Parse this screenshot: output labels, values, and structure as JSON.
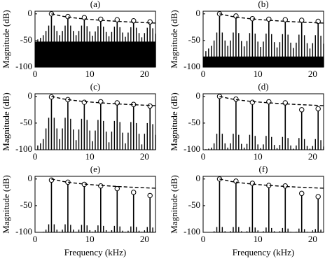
{
  "chart_data": [
    {
      "type": "stem",
      "title": "(a)",
      "y_label": "Magnitude (dB)",
      "xlim": [
        0,
        22
      ],
      "ylim": [
        -100,
        5
      ],
      "xticks": [
        0,
        10,
        20
      ],
      "yticks": [
        0,
        -50,
        -100
      ],
      "noise_floor": -52,
      "harmonics": {
        "x": [
          3,
          6,
          9,
          12,
          15,
          18,
          21
        ],
        "values": [
          0,
          -5,
          -7,
          -10,
          -11,
          -13,
          -15
        ]
      },
      "envelope": {
        "x": [
          3,
          5,
          7,
          9,
          11,
          13,
          15,
          17,
          19,
          21,
          22
        ],
        "values": [
          0,
          -4.4,
          -7.4,
          -9.5,
          -11.3,
          -12.7,
          -14,
          -15.1,
          -16,
          -16.9,
          -17.3
        ]
      },
      "sidebands": {
        "x": [
          0.5,
          1,
          1.5,
          2,
          2.5,
          3.5,
          4,
          4.5,
          5,
          5.5,
          6.5,
          7,
          7.5,
          8,
          8.5,
          9.5,
          10,
          10.5,
          11,
          11.5,
          12.5,
          13,
          13.5,
          14,
          14.5,
          15.5,
          16,
          16.5,
          17,
          17.5,
          18.5,
          19,
          19.5,
          20,
          20.5,
          21.5,
          22
        ],
        "values": [
          -48,
          -45,
          -40,
          -32,
          -22,
          -22,
          -32,
          -40,
          -32,
          -22,
          -22,
          -32,
          -40,
          -32,
          -22,
          -23,
          -33,
          -41,
          -33,
          -23,
          -24,
          -34,
          -42,
          -34,
          -24,
          -25,
          -35,
          -43,
          -35,
          -25,
          -26,
          -36,
          -44,
          -36,
          -26,
          -27,
          -37
        ]
      }
    },
    {
      "type": "stem",
      "title": "(b)",
      "y_label": "Magnitude (dB)",
      "xlim": [
        0,
        22
      ],
      "ylim": [
        -100,
        5
      ],
      "xticks": [
        0,
        10,
        20
      ],
      "yticks": [
        0,
        -50,
        -100
      ],
      "noise_floor": -80,
      "harmonics": {
        "x": [
          3,
          6,
          9,
          12,
          15,
          18,
          21
        ],
        "values": [
          0,
          -4,
          -9,
          -10,
          -11,
          -12,
          -14
        ]
      },
      "envelope": {
        "x": [
          3,
          5,
          7,
          9,
          11,
          13,
          15,
          17,
          19,
          21,
          22
        ],
        "values": [
          0,
          -4.4,
          -7.4,
          -9.5,
          -11.3,
          -12.7,
          -14,
          -15.1,
          -16,
          -16.9,
          -17.3
        ]
      },
      "sidebands": {
        "x": [
          0.5,
          1,
          1.5,
          2,
          2.5,
          3.5,
          4,
          4.5,
          5,
          5.5,
          6.5,
          7,
          7.5,
          8,
          8.5,
          9.5,
          10,
          10.5,
          11,
          11.5,
          12.5,
          13,
          13.5,
          14,
          14.5,
          15.5,
          16,
          16.5,
          17,
          17.5,
          18.5,
          19,
          19.5,
          20,
          20.5,
          21.5,
          22
        ],
        "values": [
          -70,
          -65,
          -60,
          -50,
          -35,
          -35,
          -50,
          -60,
          -50,
          -35,
          -36,
          -51,
          -61,
          -51,
          -36,
          -37,
          -52,
          -62,
          -52,
          -37,
          -38,
          -53,
          -63,
          -53,
          -38,
          -39,
          -54,
          -64,
          -54,
          -39,
          -40,
          -55,
          -65,
          -55,
          -40,
          -41,
          -56
        ]
      }
    },
    {
      "type": "stem",
      "title": "(c)",
      "y_label": "Magnitude (dB)",
      "xlim": [
        0,
        22
      ],
      "ylim": [
        -100,
        5
      ],
      "xticks": [
        0,
        10,
        20
      ],
      "yticks": [
        0,
        -50,
        -100
      ],
      "harmonics": {
        "x": [
          3,
          6,
          9,
          12,
          15,
          18,
          21
        ],
        "values": [
          -1,
          -6,
          -11,
          -10,
          -12,
          -15,
          -18
        ]
      },
      "envelope": {
        "x": [
          3,
          5,
          7,
          9,
          11,
          13,
          15,
          17,
          19,
          21,
          22
        ],
        "values": [
          0,
          -4.4,
          -7.4,
          -9.5,
          -11.3,
          -12.7,
          -14,
          -15.1,
          -16,
          -16.9,
          -17.3
        ]
      },
      "sidebands": {
        "x": [
          0.5,
          1,
          1.5,
          2,
          2.5,
          3.5,
          4,
          4.5,
          5,
          5.5,
          6.5,
          7,
          7.5,
          8,
          8.5,
          9.5,
          10,
          10.5,
          11,
          11.5,
          12.5,
          13,
          13.5,
          14,
          14.5,
          15.5,
          16,
          16.5,
          17,
          17.5,
          18.5,
          19,
          19.5,
          20,
          20.5,
          21.5,
          22
        ],
        "values": [
          -92,
          -88,
          -80,
          -60,
          -40,
          -40,
          -60,
          -80,
          -60,
          -40,
          -42,
          -62,
          -82,
          -62,
          -42,
          -44,
          -64,
          -84,
          -64,
          -44,
          -46,
          -66,
          -86,
          -66,
          -46,
          -48,
          -68,
          -88,
          -68,
          -48,
          -50,
          -70,
          -90,
          -70,
          -50,
          -52,
          -72
        ]
      }
    },
    {
      "type": "stem",
      "title": "(d)",
      "y_label": "Magnitude (dB)",
      "xlim": [
        0,
        22
      ],
      "ylim": [
        -100,
        5
      ],
      "xticks": [
        0,
        10,
        20
      ],
      "yticks": [
        0,
        -50,
        -100
      ],
      "harmonics": {
        "x": [
          3,
          6,
          9,
          12,
          15,
          18,
          21
        ],
        "values": [
          0,
          -5,
          -11,
          -10,
          -12,
          -25,
          -23
        ]
      },
      "envelope": {
        "x": [
          3,
          5,
          7,
          9,
          11,
          13,
          15,
          17,
          19,
          21,
          22
        ],
        "values": [
          0,
          -4.4,
          -7.4,
          -9.5,
          -11.3,
          -12.7,
          -14,
          -15.1,
          -16,
          -16.9,
          -17.3
        ]
      },
      "sidebands": {
        "x": [
          0.5,
          1,
          1.5,
          2,
          2.5,
          3.5,
          4,
          4.5,
          5,
          5.5,
          6.5,
          7,
          7.5,
          8,
          8.5,
          9.5,
          10,
          10.5,
          11,
          11.5,
          12.5,
          13,
          13.5,
          14,
          14.5,
          15.5,
          16,
          16.5,
          17,
          17.5,
          18.5,
          19,
          19.5,
          20,
          20.5,
          21.5,
          22
        ],
        "values": [
          -99,
          -98,
          -96,
          -88,
          -70,
          -70,
          -88,
          -96,
          -88,
          -70,
          -72,
          -89,
          -96,
          -89,
          -72,
          -74,
          -90,
          -97,
          -90,
          -74,
          -76,
          -91,
          -97,
          -91,
          -76,
          -78,
          -92,
          -98,
          -92,
          -78,
          -80,
          -93,
          -98,
          -93,
          -80,
          -82,
          -94
        ]
      }
    },
    {
      "type": "stem",
      "title": "(e)",
      "y_label": "Magnitude (dB)",
      "x_label": "Frequency (kHz)",
      "xlim": [
        0,
        22
      ],
      "ylim": [
        -100,
        5
      ],
      "xticks": [
        0,
        10,
        20
      ],
      "yticks": [
        0,
        -50,
        -100
      ],
      "harmonics": {
        "x": [
          3,
          6,
          9,
          12,
          15,
          18,
          21
        ],
        "values": [
          -2,
          -6,
          -10,
          -13,
          -18,
          -25,
          -31
        ]
      },
      "envelope": {
        "x": [
          3,
          5,
          7,
          9,
          11,
          13,
          15,
          17,
          19,
          21,
          22
        ],
        "values": [
          0,
          -4.4,
          -7.4,
          -9.5,
          -11.3,
          -12.7,
          -14,
          -15.1,
          -16,
          -16.9,
          -17.3
        ]
      },
      "sidebands": {
        "x": [
          0.5,
          1,
          1.5,
          2,
          2.5,
          3.5,
          4,
          4.5,
          5,
          5.5,
          6.5,
          7,
          7.5,
          8,
          8.5,
          9.5,
          10,
          10.5,
          11,
          11.5,
          12.5,
          13,
          13.5,
          14,
          14.5,
          15.5,
          16,
          16.5,
          17,
          17.5,
          18.5,
          19,
          19.5,
          20,
          20.5,
          21.5,
          22
        ],
        "values": [
          -100,
          -100,
          -99,
          -95,
          -85,
          -85,
          -95,
          -99,
          -95,
          -85,
          -86,
          -95,
          -99,
          -95,
          -86,
          -87,
          -96,
          -99,
          -96,
          -87,
          -88,
          -96,
          -99,
          -96,
          -88,
          -89,
          -97,
          -99,
          -97,
          -89,
          -90,
          -97,
          -99,
          -97,
          -90,
          -91,
          -98
        ]
      }
    },
    {
      "type": "stem",
      "title": "(f)",
      "y_label": "Magnitude (dB)",
      "x_label": "Frequency (kHz)",
      "xlim": [
        0,
        22
      ],
      "ylim": [
        -100,
        5
      ],
      "xticks": [
        0,
        10,
        20
      ],
      "yticks": [
        0,
        -50,
        -100
      ],
      "harmonics": {
        "x": [
          3,
          6,
          9,
          12,
          15,
          18,
          21
        ],
        "values": [
          0,
          -4,
          -8,
          -12,
          -13,
          -27,
          -33
        ]
      },
      "envelope": {
        "x": [
          3,
          5,
          7,
          9,
          11,
          13,
          15,
          17,
          19,
          21,
          22
        ],
        "values": [
          0,
          -4.4,
          -7.4,
          -9.5,
          -11.3,
          -12.7,
          -14,
          -15.1,
          -16,
          -16.9,
          -17.3
        ]
      },
      "sidebands": {
        "x": [
          0.5,
          1,
          1.5,
          2,
          2.5,
          3.5,
          4,
          4.5,
          5,
          5.5,
          6.5,
          7,
          7.5,
          8,
          8.5,
          9.5,
          10,
          10.5,
          11,
          11.5,
          12.5,
          13,
          13.5,
          14,
          14.5,
          15.5,
          16,
          16.5,
          17,
          17.5,
          18.5,
          19,
          19.5,
          20,
          20.5,
          21.5,
          22
        ],
        "values": [
          -100,
          -100,
          -100,
          -98,
          -90,
          -90,
          -98,
          -100,
          -98,
          -90,
          -90,
          -98,
          -100,
          -98,
          -90,
          -91,
          -98,
          -100,
          -98,
          -91,
          -92,
          -98,
          -100,
          -98,
          -92,
          -93,
          -99,
          -100,
          -99,
          -93,
          -94,
          -99,
          -100,
          -99,
          -94,
          -95,
          -99
        ]
      }
    }
  ]
}
